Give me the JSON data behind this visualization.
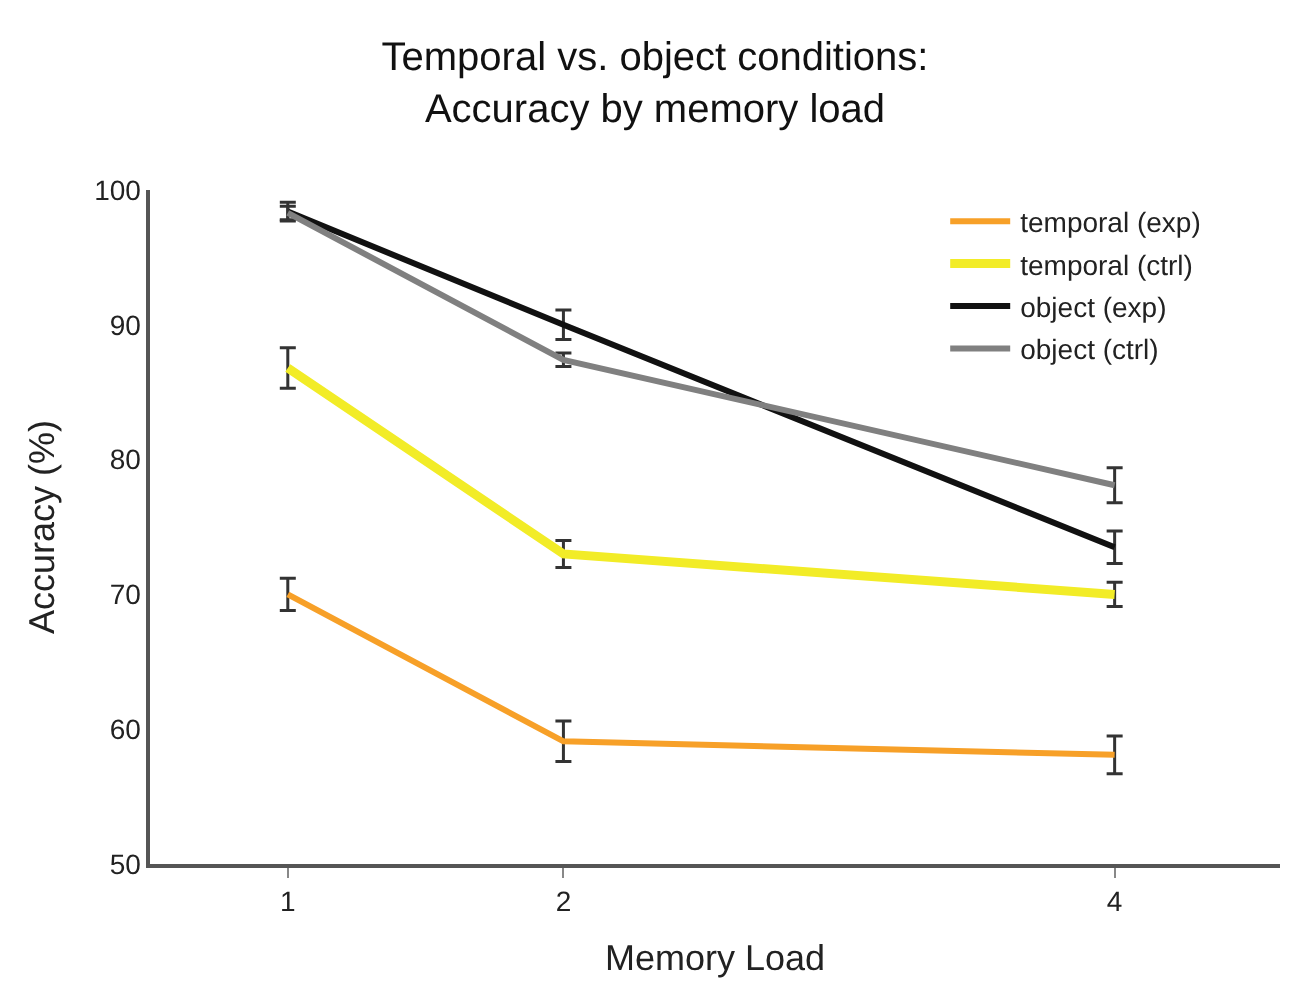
{
  "chart_data": {
    "type": "line",
    "title": "Temporal vs. object conditions:\nAccuracy by memory load",
    "xlabel": "Memory Load",
    "ylabel": "Accuracy (%)",
    "x": [
      1,
      2,
      4
    ],
    "xlim": [
      0.5,
      4.6
    ],
    "xticks": [
      1,
      2,
      4
    ],
    "ylim": [
      50,
      100
    ],
    "yticks": [
      50,
      60,
      70,
      80,
      90,
      100
    ],
    "legend": "top right",
    "line_style": "solid",
    "series": [
      {
        "name": "temporal (exp)",
        "color": "#f7a028",
        "values": [
          70.0,
          59.1,
          58.1
        ],
        "errors": [
          1.2,
          1.5,
          1.4
        ]
      },
      {
        "name": "temporal (ctrl)",
        "color": "#f2ec27",
        "values": [
          86.8,
          73.0,
          70.0
        ],
        "errors": [
          1.5,
          1.0,
          0.9
        ]
      },
      {
        "name": "object (exp)",
        "color": "#111111",
        "values": [
          98.4,
          90.0,
          73.5
        ],
        "errors": [
          0.7,
          1.1,
          1.2
        ]
      },
      {
        "name": "object (ctrl)",
        "color": "#808080",
        "values": [
          98.3,
          87.4,
          78.1
        ],
        "errors": [
          0.5,
          0.5,
          1.3
        ]
      }
    ]
  }
}
